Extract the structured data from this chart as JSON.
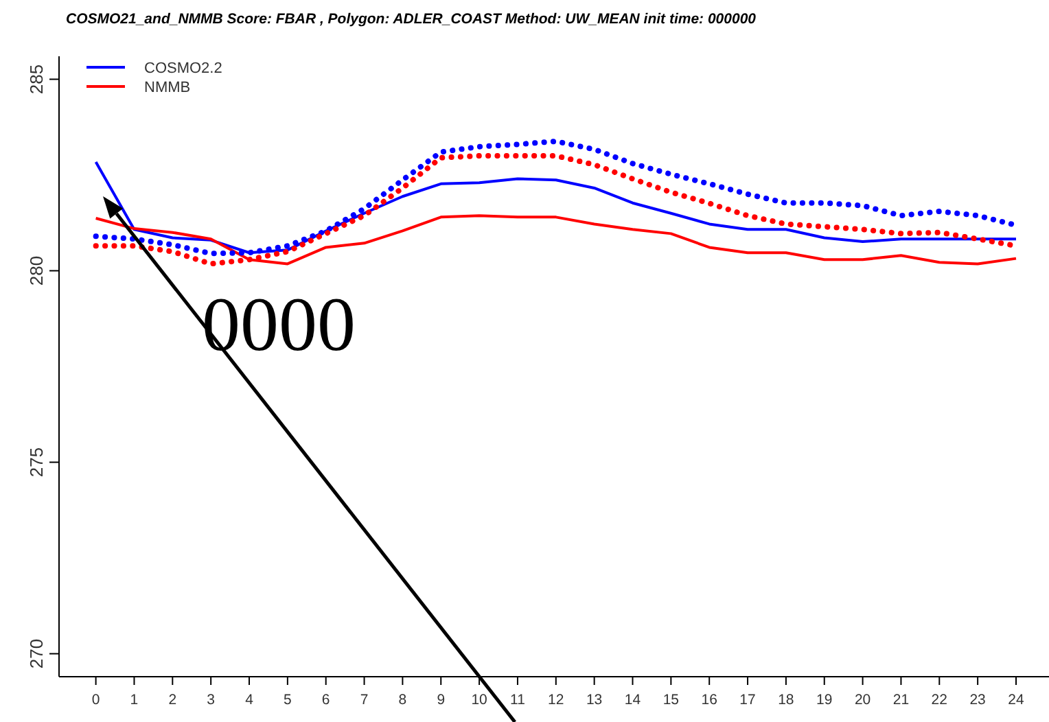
{
  "chart_data": {
    "type": "line",
    "title": "COSMO21_and_NMMB  Score:  FBAR , Polygon:  ADLER_COAST  Method:  UW_MEAN  init time: 000000",
    "x": [
      0,
      1,
      2,
      3,
      4,
      5,
      6,
      7,
      8,
      9,
      10,
      11,
      12,
      13,
      14,
      15,
      16,
      17,
      18,
      19,
      20,
      21,
      22,
      23,
      24
    ],
    "xlim": [
      -0.96,
      24.96
    ],
    "xticks": [
      0,
      1,
      2,
      3,
      4,
      5,
      6,
      7,
      8,
      9,
      10,
      11,
      12,
      13,
      14,
      15,
      16,
      17,
      18,
      19,
      20,
      21,
      22,
      23,
      24
    ],
    "ylim": [
      269.4,
      285.6
    ],
    "yticks": [
      270,
      275,
      280,
      285
    ],
    "grid": false,
    "legend": "top left",
    "series": [
      {
        "name": "COSMO2.2",
        "color": "#0000ff",
        "line_style": "solid",
        "values": [
          282.84,
          281.08,
          280.86,
          280.8,
          280.47,
          280.54,
          281.04,
          281.5,
          281.94,
          282.27,
          282.3,
          282.4,
          282.37,
          282.16,
          281.77,
          281.5,
          281.22,
          281.08,
          281.08,
          280.86,
          280.76,
          280.83,
          280.83,
          280.83,
          280.83
        ]
      },
      {
        "name": "NMMB",
        "color": "#ff0000",
        "line_style": "solid",
        "values": [
          281.37,
          281.1,
          281.0,
          280.83,
          280.29,
          280.18,
          280.61,
          280.72,
          281.04,
          281.4,
          281.44,
          281.4,
          281.4,
          281.22,
          281.08,
          280.97,
          280.61,
          280.47,
          280.47,
          280.29,
          280.29,
          280.4,
          280.22,
          280.18,
          280.32
        ]
      },
      {
        "color": "#0000ff",
        "line_style": "dotted",
        "values": [
          280.9,
          280.83,
          280.68,
          280.45,
          280.47,
          280.65,
          281.04,
          281.62,
          282.37,
          283.1,
          283.24,
          283.3,
          283.38,
          283.17,
          282.8,
          282.52,
          282.27,
          282.0,
          281.77,
          281.77,
          281.7,
          281.44,
          281.55,
          281.44,
          281.19
        ]
      },
      {
        "color": "#ff0000",
        "line_style": "dotted",
        "values": [
          280.65,
          280.65,
          280.5,
          280.18,
          280.29,
          280.5,
          280.97,
          281.44,
          282.16,
          282.95,
          283.0,
          283.0,
          283.0,
          282.77,
          282.4,
          282.05,
          281.76,
          281.44,
          281.22,
          281.15,
          281.08,
          280.97,
          281.0,
          280.83,
          280.65
        ]
      }
    ],
    "annotations": [
      "0000"
    ]
  }
}
